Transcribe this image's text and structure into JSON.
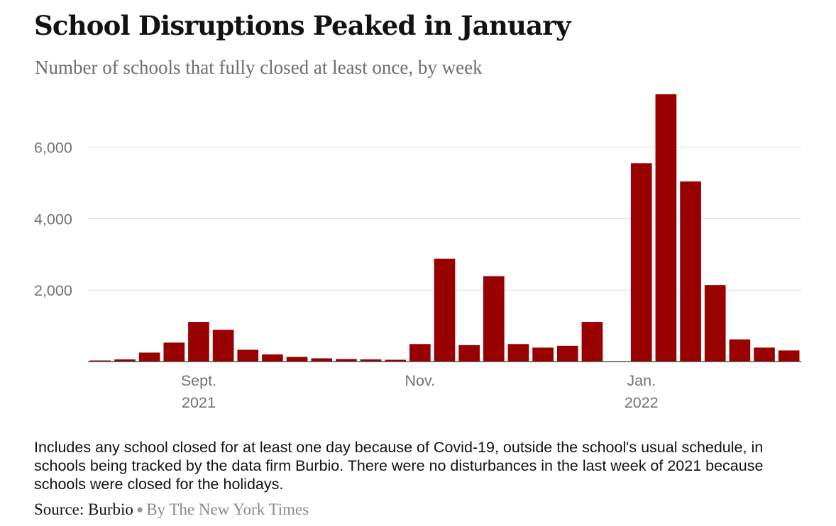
{
  "title": "School Disruptions Peaked in January",
  "subtitle": "Number of schools that fully closed at least once, by week",
  "note": "Includes any school closed for at least one day because of Covid-19, outside the school's usual schedule, in schools being tracked by the data firm Burbio. There were no disturbances in the last week of 2021 because schools were closed for the holidays.",
  "source": {
    "label": "Source: Burbio",
    "byline": "By The New York Times"
  },
  "colors": {
    "bar": "#990000",
    "grid": "#dddddd",
    "axis": "#333333"
  },
  "chart_data": {
    "type": "bar",
    "title": "School Disruptions Peaked in January",
    "subtitle": "Number of schools that fully closed at least once, by week",
    "xlabel": "",
    "ylabel": "",
    "ylim": [
      0,
      7500
    ],
    "yticks": [
      2000,
      4000,
      6000
    ],
    "ytick_labels": [
      "2,000",
      "4,000",
      "6,000"
    ],
    "grid": true,
    "x_labels": [
      {
        "index": 4,
        "line1": "Sept.",
        "line2": "2021"
      },
      {
        "index": 13,
        "line1": "Nov.",
        "line2": ""
      },
      {
        "index": 22,
        "line1": "Jan.",
        "line2": "2022"
      }
    ],
    "values": [
      30,
      60,
      250,
      530,
      1110,
      890,
      330,
      200,
      130,
      90,
      70,
      60,
      50,
      490,
      2880,
      460,
      2390,
      490,
      390,
      440,
      1110,
      0,
      5550,
      7480,
      5040,
      2140,
      620,
      390,
      310
    ]
  }
}
